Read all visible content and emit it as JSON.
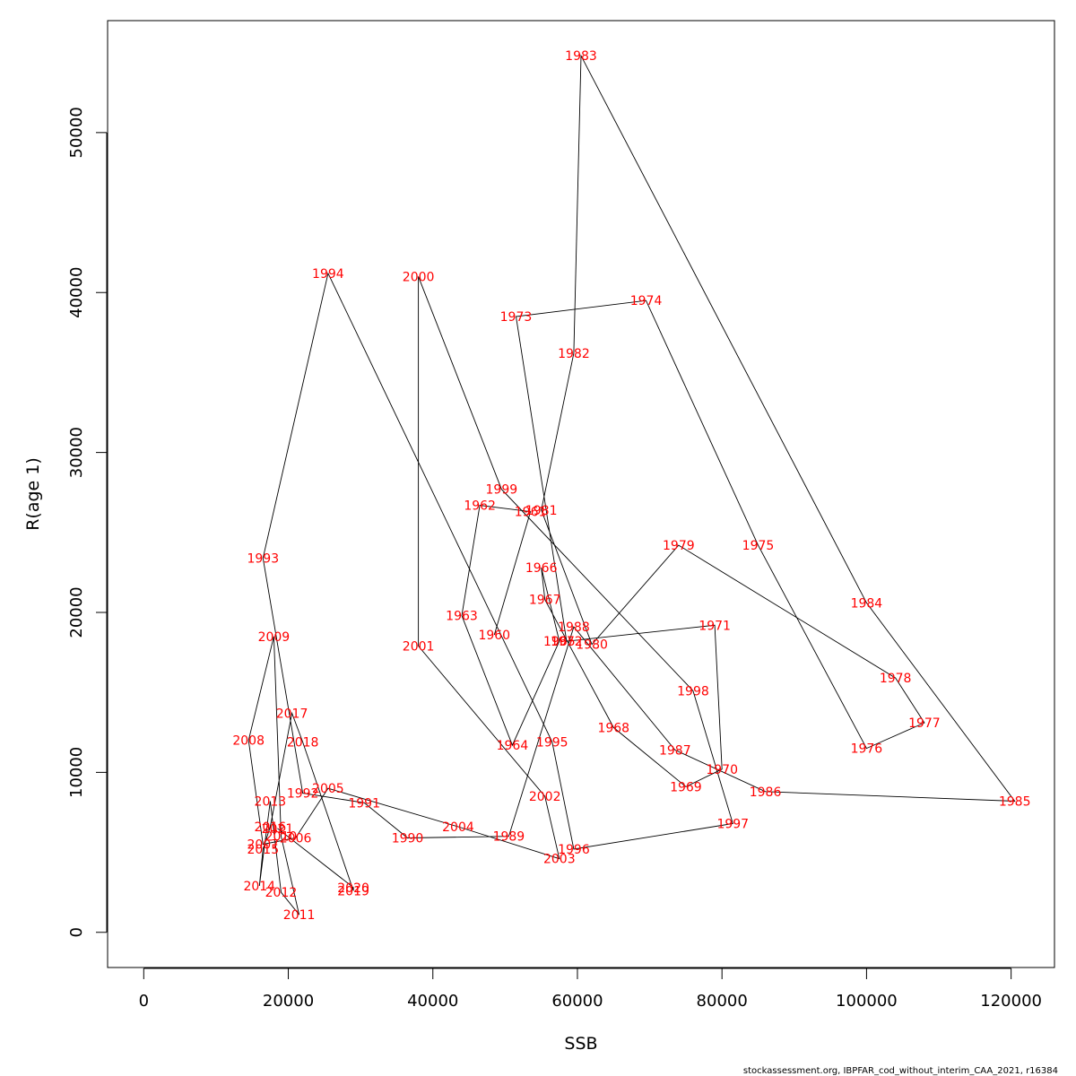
{
  "chart_data": {
    "type": "line",
    "title": "",
    "xlabel": "SSB",
    "ylabel": "R(age 1)",
    "xlim": [
      -5000,
      126000
    ],
    "ylim": [
      -2200,
      57000
    ],
    "xticks": [
      0,
      20000,
      40000,
      60000,
      80000,
      100000,
      120000
    ],
    "yticks": [
      0,
      10000,
      20000,
      30000,
      40000,
      50000
    ],
    "grid": false,
    "line_color": "#000000",
    "label_color": "#ff0000",
    "points": [
      {
        "year": "1960",
        "ssb": 48500,
        "r": 18600
      },
      {
        "year": "1961",
        "ssb": 53500,
        "r": 26300
      },
      {
        "year": "1962",
        "ssb": 46500,
        "r": 26700
      },
      {
        "year": "1963",
        "ssb": 44000,
        "r": 19800
      },
      {
        "year": "1964",
        "ssb": 51000,
        "r": 11700
      },
      {
        "year": "1965",
        "ssb": 57500,
        "r": 18200
      },
      {
        "year": "1966",
        "ssb": 55000,
        "r": 22800
      },
      {
        "year": "1967",
        "ssb": 55500,
        "r": 20800
      },
      {
        "year": "1968",
        "ssb": 65000,
        "r": 12800
      },
      {
        "year": "1969",
        "ssb": 75000,
        "r": 9100
      },
      {
        "year": "1970",
        "ssb": 80000,
        "r": 10200
      },
      {
        "year": "1971",
        "ssb": 79000,
        "r": 19200
      },
      {
        "year": "1972",
        "ssb": 58500,
        "r": 18200
      },
      {
        "year": "1973",
        "ssb": 51500,
        "r": 38500
      },
      {
        "year": "1974",
        "ssb": 69500,
        "r": 39500
      },
      {
        "year": "1975",
        "ssb": 85000,
        "r": 24200
      },
      {
        "year": "1976",
        "ssb": 100000,
        "r": 11500
      },
      {
        "year": "1977",
        "ssb": 108000,
        "r": 13100
      },
      {
        "year": "1978",
        "ssb": 104000,
        "r": 15900
      },
      {
        "year": "1979",
        "ssb": 74000,
        "r": 24200
      },
      {
        "year": "1980",
        "ssb": 62000,
        "r": 18000
      },
      {
        "year": "1981",
        "ssb": 55000,
        "r": 26400
      },
      {
        "year": "1982",
        "ssb": 59500,
        "r": 36200
      },
      {
        "year": "1983",
        "ssb": 60500,
        "r": 54800
      },
      {
        "year": "1984",
        "ssb": 100000,
        "r": 20600
      },
      {
        "year": "1985",
        "ssb": 120500,
        "r": 8200
      },
      {
        "year": "1986",
        "ssb": 86000,
        "r": 8800
      },
      {
        "year": "1987",
        "ssb": 73500,
        "r": 11400
      },
      {
        "year": "1988",
        "ssb": 59500,
        "r": 19100
      },
      {
        "year": "1989",
        "ssb": 50500,
        "r": 6000
      },
      {
        "year": "1990",
        "ssb": 36500,
        "r": 5900
      },
      {
        "year": "1991",
        "ssb": 30500,
        "r": 8100
      },
      {
        "year": "1992",
        "ssb": 22000,
        "r": 8700
      },
      {
        "year": "1993",
        "ssb": 16500,
        "r": 23400
      },
      {
        "year": "1994",
        "ssb": 25500,
        "r": 41200
      },
      {
        "year": "1995",
        "ssb": 56500,
        "r": 11900
      },
      {
        "year": "1996",
        "ssb": 59500,
        "r": 5200
      },
      {
        "year": "1997",
        "ssb": 81500,
        "r": 6800
      },
      {
        "year": "1998",
        "ssb": 76000,
        "r": 15100
      },
      {
        "year": "1999",
        "ssb": 49500,
        "r": 27700
      },
      {
        "year": "2000",
        "ssb": 38000,
        "r": 41000
      },
      {
        "year": "2001",
        "ssb": 38000,
        "r": 17900
      },
      {
        "year": "2002",
        "ssb": 55500,
        "r": 8500
      },
      {
        "year": "2003",
        "ssb": 57500,
        "r": 4600
      },
      {
        "year": "2004",
        "ssb": 43500,
        "r": 6600
      },
      {
        "year": "2005",
        "ssb": 25500,
        "r": 9000
      },
      {
        "year": "2006",
        "ssb": 21000,
        "r": 5900
      },
      {
        "year": "2007",
        "ssb": 16500,
        "r": 5500
      },
      {
        "year": "2008",
        "ssb": 14500,
        "r": 12000
      },
      {
        "year": "2009",
        "ssb": 18000,
        "r": 18500
      },
      {
        "year": "2010",
        "ssb": 19000,
        "r": 6000
      },
      {
        "year": "2011",
        "ssb": 21500,
        "r": 1100
      },
      {
        "year": "2012",
        "ssb": 19000,
        "r": 2500
      },
      {
        "year": "2013",
        "ssb": 17500,
        "r": 8200
      },
      {
        "year": "2014",
        "ssb": 16000,
        "r": 2900
      },
      {
        "year": "2015",
        "ssb": 16500,
        "r": 5200
      },
      {
        "year": "2016",
        "ssb": 17500,
        "r": 6600
      },
      {
        "year": "2017",
        "ssb": 20500,
        "r": 13700
      },
      {
        "year": "2018",
        "ssb": 22000,
        "r": 11900
      },
      {
        "year": "2019",
        "ssb": 29000,
        "r": 2600
      },
      {
        "year": "2020",
        "ssb": 29000,
        "r": 2800
      },
      {
        "year": "2021",
        "ssb": 18500,
        "r": 6500
      }
    ]
  },
  "credit": "stockassessment.org, IBPFAR_cod_without_interim_CAA_2021, r16384"
}
